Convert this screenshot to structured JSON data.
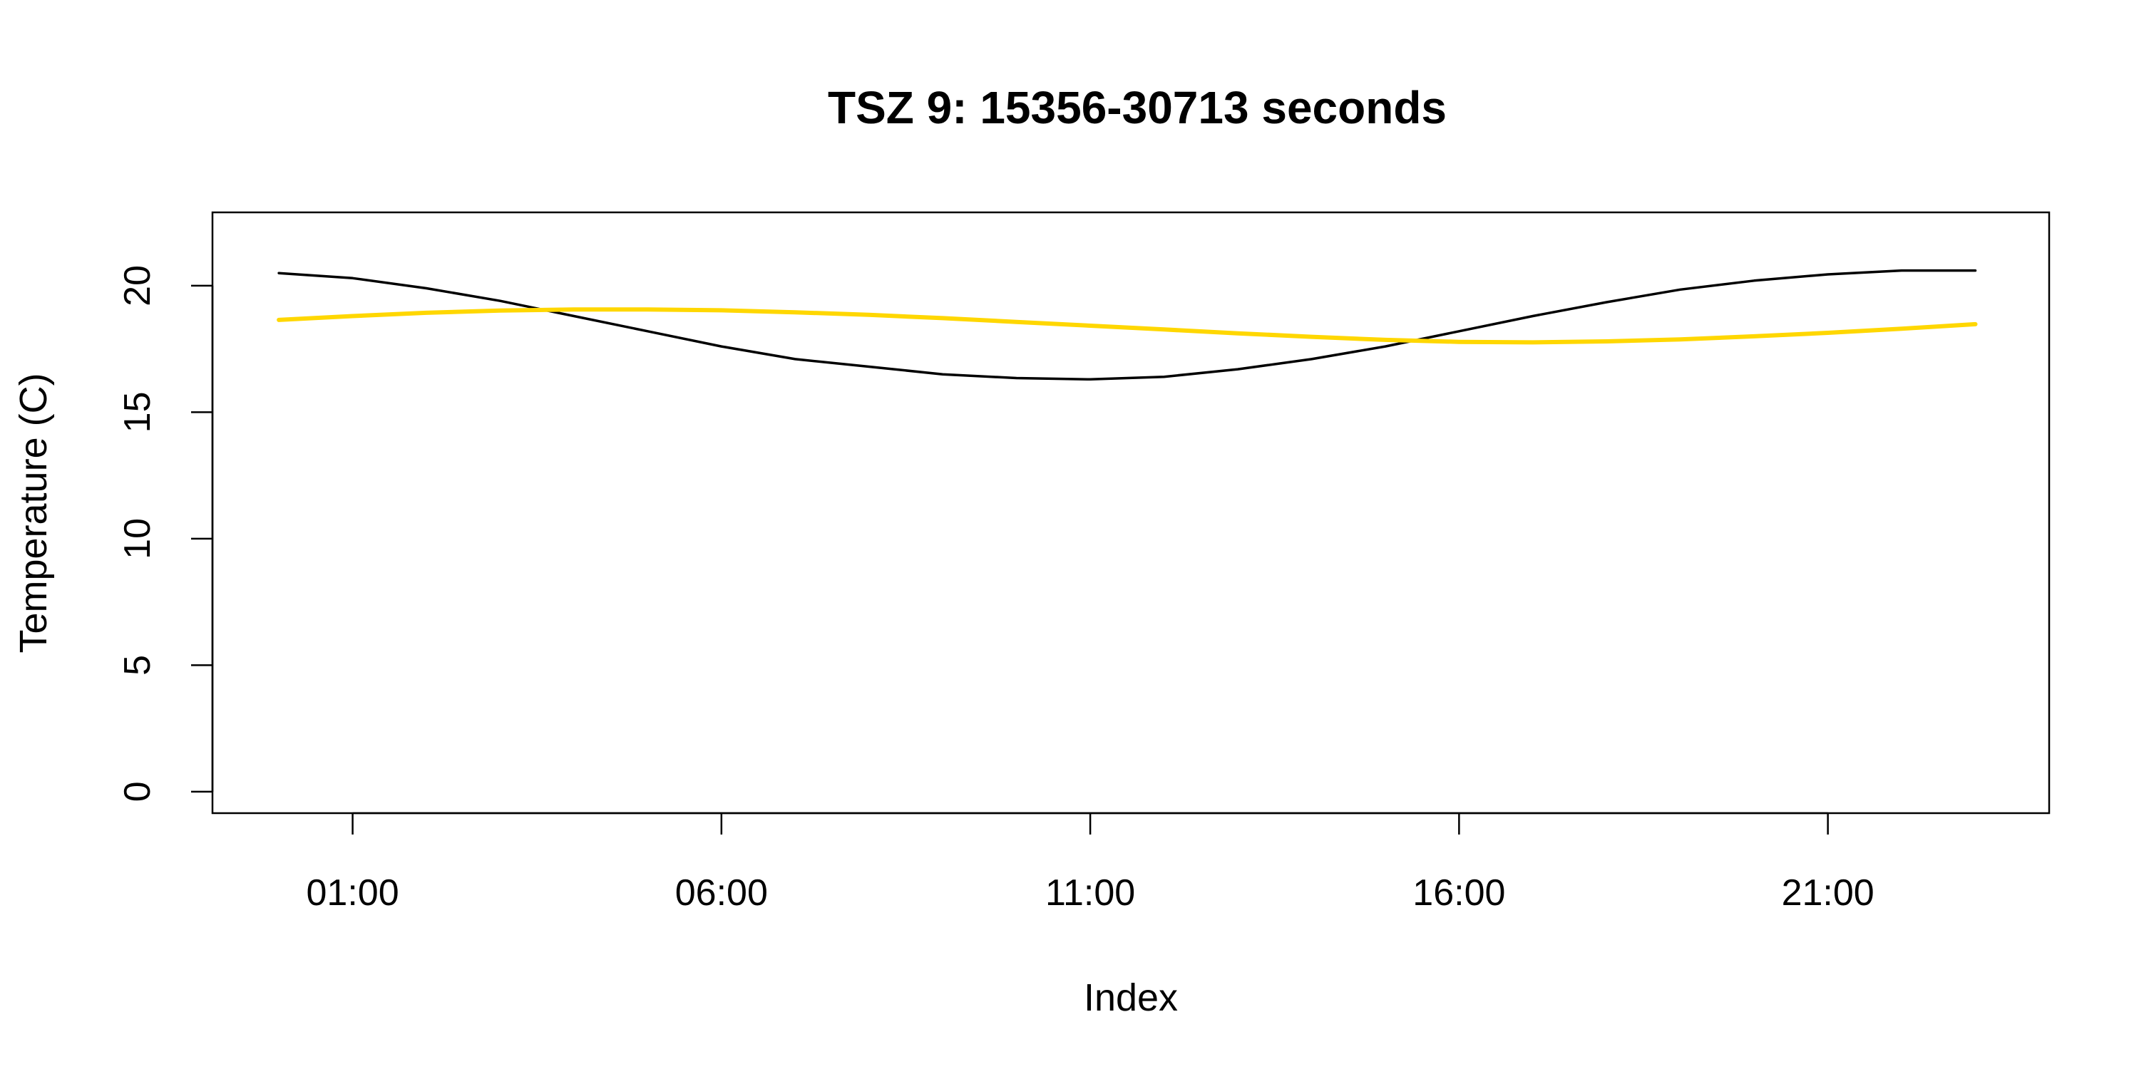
{
  "chart_data": {
    "type": "line",
    "title": "TSZ 9: 15356-30713 seconds",
    "xlabel": "Index",
    "ylabel": "Temperature (C)",
    "x_ticks": [
      "01:00",
      "06:00",
      "11:00",
      "16:00",
      "21:00"
    ],
    "x_tick_hours": [
      1,
      6,
      11,
      16,
      21
    ],
    "xlim_hours": [
      -0.9,
      24.0
    ],
    "ylim": [
      -0.85,
      22.9
    ],
    "y_ticks": [
      0,
      5,
      10,
      15,
      20
    ],
    "grid": false,
    "legend": "none",
    "series": [
      {
        "color": "#000000",
        "x_hours": [
          0.0,
          1.0,
          2.0,
          3.0,
          4.0,
          5.0,
          6.0,
          7.0,
          8.0,
          9.0,
          10.0,
          11.0,
          12.0,
          13.0,
          14.0,
          15.0,
          16.0,
          17.0,
          18.0,
          19.0,
          20.0,
          21.0,
          22.0,
          23.0
        ],
        "values": [
          20.5,
          20.3,
          19.9,
          19.4,
          18.8,
          18.2,
          17.6,
          17.1,
          16.8,
          16.5,
          16.35,
          16.3,
          16.4,
          16.7,
          17.1,
          17.6,
          18.2,
          18.8,
          19.35,
          19.85,
          20.2,
          20.45,
          20.6,
          20.6
        ]
      },
      {
        "color": "#FFD700",
        "x_hours": [
          0.0,
          1.0,
          2.0,
          3.0,
          4.0,
          5.0,
          6.0,
          7.0,
          8.0,
          9.0,
          10.0,
          11.0,
          12.0,
          13.0,
          14.0,
          15.0,
          16.0,
          17.0,
          18.0,
          19.0,
          20.0,
          21.0,
          22.0,
          23.0
        ],
        "values": [
          18.65,
          18.8,
          18.93,
          19.02,
          19.06,
          19.06,
          19.03,
          18.95,
          18.85,
          18.72,
          18.57,
          18.42,
          18.27,
          18.12,
          17.98,
          17.86,
          17.78,
          17.76,
          17.8,
          17.88,
          18.0,
          18.14,
          18.3,
          18.48
        ]
      }
    ]
  }
}
